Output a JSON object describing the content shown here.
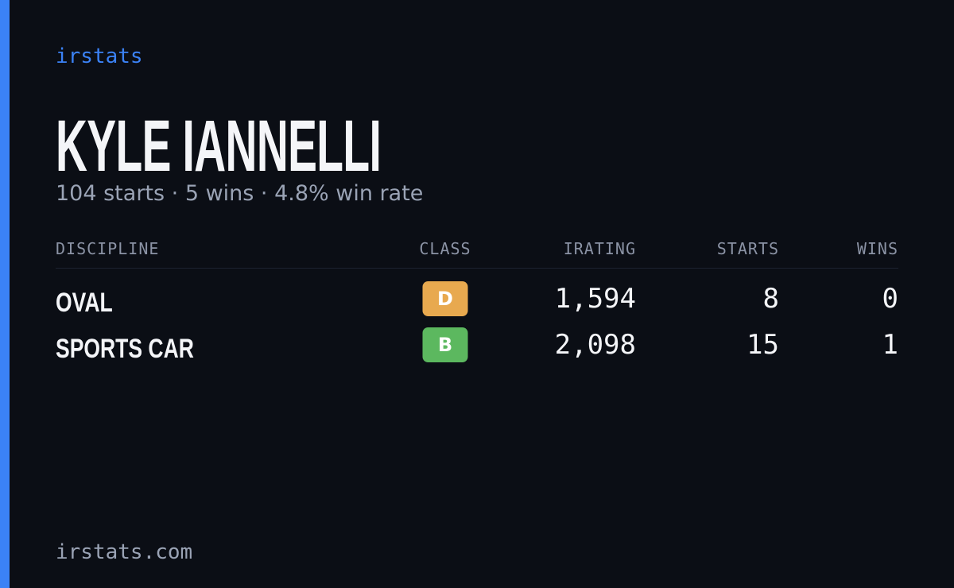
{
  "brand": "irstats",
  "name": "KYLE IANNELLI",
  "subtitle": "104 starts · 5 wins · 4.8% win rate",
  "table": {
    "headers": [
      "DISCIPLINE",
      "CLASS",
      "IRATING",
      "STARTS",
      "WINS"
    ],
    "rows": [
      [
        "OVAL",
        "D",
        "1,594",
        "8",
        "0"
      ],
      [
        "SPORTS CAR",
        "B",
        "2,098",
        "15",
        "1"
      ]
    ],
    "class_colors": {
      "D": "#e8a94f",
      "B": "#5cb85f"
    }
  },
  "footer": "irstats.com"
}
